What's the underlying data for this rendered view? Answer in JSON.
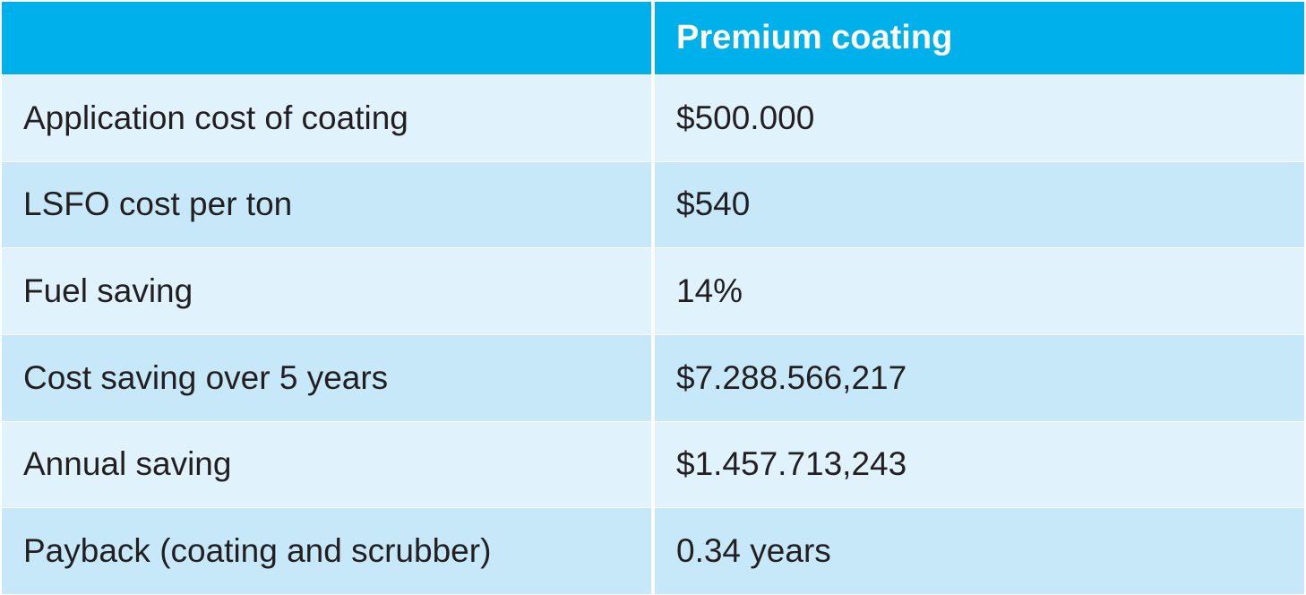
{
  "table": {
    "column_header": "Premium coating",
    "rows": [
      [
        "Application cost of coating",
        "$500.000"
      ],
      [
        "LSFO cost per ton",
        "$540"
      ],
      [
        "Fuel saving",
        "14%"
      ],
      [
        "Cost saving over 5 years",
        "$7.288.566,217"
      ],
      [
        "Annual saving",
        "$1.457.713,243"
      ],
      [
        "Payback (coating and scrubber)",
        "0.34 years"
      ]
    ]
  }
}
